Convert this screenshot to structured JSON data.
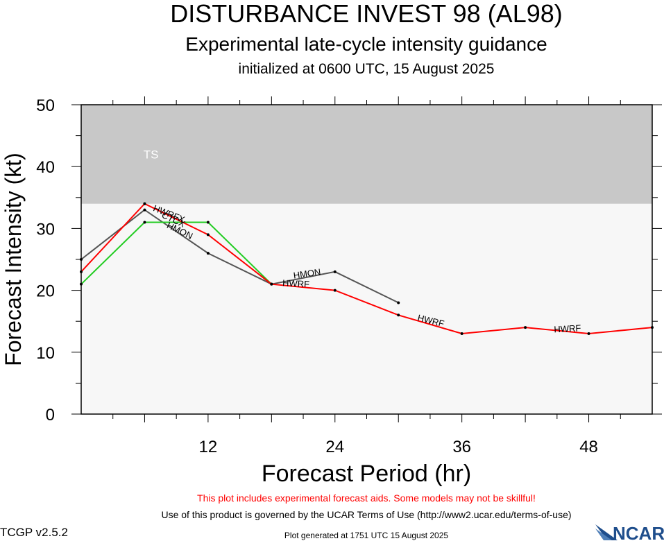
{
  "header": {
    "title": "DISTURBANCE INVEST 98 (AL98)",
    "subtitle": "Experimental late-cycle intensity guidance",
    "init_line": "initialized at 0600 UTC, 15 August 2025"
  },
  "footer": {
    "warning": "This plot includes experimental forecast aids. Some models may not be skillful!",
    "terms": "Use of this product is governed by the UCAR Terms of Use (http://www2.ucar.edu/terms-of-use)",
    "version": "TCGP v2.5.2",
    "generated": "Plot generated at 1751 UTC   15 August 2025",
    "logo_text": "NCAR"
  },
  "colors": {
    "ts_band": "#c8c8c8",
    "plot_bg": "#f7f7f7",
    "warning_text": "#ff0000",
    "logo_blue": "#1f4e8c"
  },
  "chart_data": {
    "type": "line",
    "xlabel": "Forecast Period (hr)",
    "ylabel": "Forecast Intensity (kt)",
    "xlim": [
      0,
      54
    ],
    "ylim": [
      0,
      50
    ],
    "xticks": [
      12,
      24,
      36,
      48
    ],
    "yticks": [
      0,
      10,
      20,
      30,
      40,
      50
    ],
    "grid": false,
    "bands": [
      {
        "label": "TS",
        "from": 34,
        "to": 50,
        "color": "#c8c8c8"
      }
    ],
    "series": [
      {
        "name": "HWRF",
        "color": "#ff0000",
        "x": [
          0,
          6,
          12,
          18,
          24,
          30,
          36,
          42,
          48,
          54
        ],
        "y": [
          23,
          34,
          29,
          21,
          20,
          16,
          13,
          14,
          13,
          14
        ],
        "labels": [
          {
            "text": "HWRF",
            "x": 20.3,
            "y": 20.6,
            "angle": 3
          },
          {
            "text": "HWRF",
            "x": 33.0,
            "y": 14.6,
            "angle": 14
          },
          {
            "text": "HWRF",
            "x": 46.0,
            "y": 13.3,
            "angle": -3
          }
        ]
      },
      {
        "name": "HMON",
        "color": "#555555",
        "x": [
          0,
          6,
          12,
          18,
          24,
          30
        ],
        "y": [
          25,
          33,
          26,
          21,
          23,
          18
        ],
        "labels": [
          {
            "text": "HMON",
            "x": 9.2,
            "y": 29.2,
            "angle": 26
          },
          {
            "text": "HMON",
            "x": 21.4,
            "y": 22.2,
            "angle": -8
          }
        ]
      },
      {
        "name": "HWRFX",
        "color": "#000000",
        "x": [
          6
        ],
        "y": [
          34
        ],
        "labels": [
          {
            "text": "HWRFX",
            "x": 8.2,
            "y": 31.9,
            "angle": 22
          }
        ]
      },
      {
        "name": "CTCX",
        "color": "#22cc22",
        "x": [
          0,
          6,
          12,
          18
        ],
        "y": [
          21,
          31,
          31,
          21
        ],
        "labels": [
          {
            "text": "CTCX",
            "x": 8.6,
            "y": 31.0,
            "angle": 25
          }
        ]
      }
    ]
  }
}
